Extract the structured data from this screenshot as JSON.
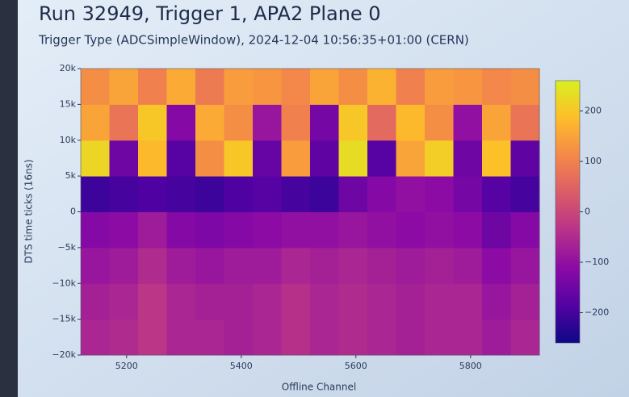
{
  "chart_data": {
    "type": "heatmap",
    "title": "Run 32949, Trigger 1, APA2 Plane 0",
    "subtitle": "Trigger Type (ADCSimpleWindow), 2024-12-04 10:56:35+01:00 (CERN)",
    "xlabel": "Offline Channel",
    "ylabel": "DTS time ticks (16ns)",
    "xbins": [
      5120,
      5170,
      5220,
      5270,
      5320,
      5370,
      5420,
      5470,
      5520,
      5570,
      5620,
      5670,
      5720,
      5770,
      5820,
      5870,
      5920
    ],
    "ybins": [
      -20000,
      -15000,
      -10000,
      -5000,
      0,
      5000,
      10000,
      15000,
      20000
    ],
    "z": [
      [
        -60,
        -50,
        -30,
        -60,
        -60,
        -70,
        -60,
        -40,
        -60,
        -50,
        -60,
        -70,
        -60,
        -60,
        -80,
        -60
      ],
      [
        -70,
        -60,
        -30,
        -60,
        -70,
        -70,
        -60,
        -40,
        -60,
        -50,
        -60,
        -70,
        -60,
        -60,
        -90,
        -70
      ],
      [
        -90,
        -80,
        -50,
        -80,
        -90,
        -80,
        -80,
        -60,
        -70,
        -60,
        -70,
        -80,
        -70,
        -80,
        -110,
        -90
      ],
      [
        -120,
        -110,
        -80,
        -120,
        -130,
        -120,
        -110,
        -100,
        -100,
        -90,
        -100,
        -110,
        -100,
        -110,
        -150,
        -120
      ],
      [
        -210,
        -200,
        -190,
        -200,
        -210,
        -190,
        -180,
        -200,
        -210,
        -150,
        -120,
        -100,
        -110,
        -140,
        -180,
        -200
      ],
      [
        220,
        -150,
        180,
        -180,
        120,
        200,
        -160,
        140,
        -170,
        230,
        -180,
        150,
        210,
        -150,
        190,
        -170
      ],
      [
        150,
        80,
        200,
        -120,
        160,
        120,
        -90,
        100,
        -140,
        200,
        60,
        180,
        120,
        -100,
        150,
        80
      ],
      [
        120,
        150,
        100,
        160,
        90,
        140,
        130,
        110,
        150,
        120,
        170,
        100,
        140,
        130,
        110,
        120
      ]
    ],
    "xlim": [
      5120,
      5920
    ],
    "ylim": [
      -20000,
      20000
    ],
    "xticks": [
      5200,
      5400,
      5600,
      5800
    ],
    "yticks": [
      {
        "value": 20000,
        "label": "20k"
      },
      {
        "value": 15000,
        "label": "15k"
      },
      {
        "value": 10000,
        "label": "10k"
      },
      {
        "value": 5000,
        "label": "5k"
      },
      0,
      {
        "value": -5000,
        "label": "−5k"
      },
      {
        "value": -10000,
        "label": "−10k"
      },
      {
        "value": -15000,
        "label": "−15k"
      },
      {
        "value": -20000,
        "label": "−20k"
      }
    ],
    "clim": [
      -260,
      260
    ],
    "cticks": [
      200,
      100,
      0,
      {
        "value": -100,
        "label": "−100"
      },
      {
        "value": -200,
        "label": "−200"
      }
    ],
    "colorscale": [
      "#0d0887",
      "#5302a3",
      "#8b0aa5",
      "#b83289",
      "#db5c68",
      "#f48849",
      "#febd2a",
      "#d8f020"
    ]
  }
}
